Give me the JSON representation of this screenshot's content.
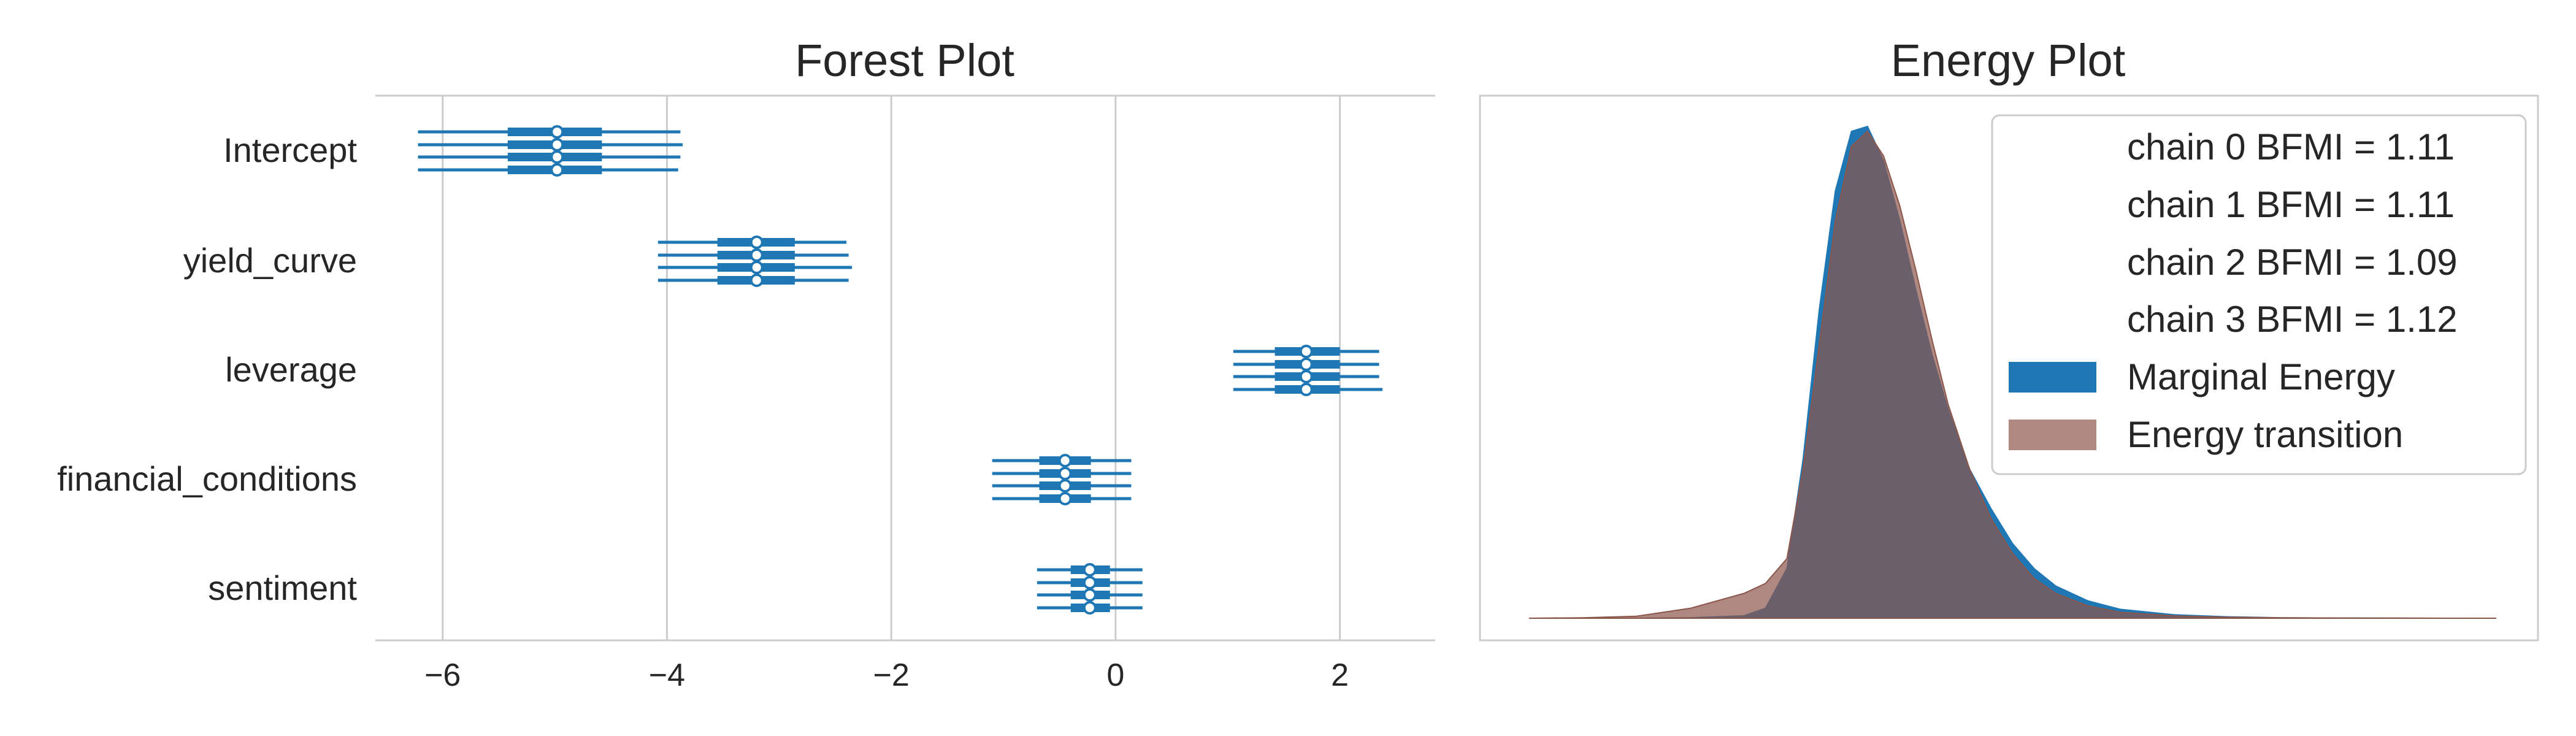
{
  "chart_data": [
    {
      "type": "forest",
      "title": "Forest Plot",
      "xlim": [
        -6.6,
        2.85
      ],
      "xticks": [
        -6,
        -4,
        -2,
        0,
        2
      ],
      "xtick_labels": [
        "−6",
        "−4",
        "−2",
        "0",
        "2"
      ],
      "grid": "vertical",
      "color": "#1f77b4",
      "parameters": [
        {
          "name": "Intercept",
          "chains": [
            {
              "median": -4.98,
              "hdi_50": [
                -5.42,
                -4.58
              ],
              "hdi_94": [
                -6.22,
                -3.88
              ]
            },
            {
              "median": -4.98,
              "hdi_50": [
                -5.42,
                -4.58
              ],
              "hdi_94": [
                -6.22,
                -3.86
              ]
            },
            {
              "median": -4.98,
              "hdi_50": [
                -5.42,
                -4.58
              ],
              "hdi_94": [
                -6.22,
                -3.88
              ]
            },
            {
              "median": -4.98,
              "hdi_50": [
                -5.42,
                -4.58
              ],
              "hdi_94": [
                -6.22,
                -3.9
              ]
            }
          ]
        },
        {
          "name": "yield_curve",
          "chains": [
            {
              "median": -3.2,
              "hdi_50": [
                -3.55,
                -2.86
              ],
              "hdi_94": [
                -4.08,
                -2.4
              ]
            },
            {
              "median": -3.2,
              "hdi_50": [
                -3.55,
                -2.86
              ],
              "hdi_94": [
                -4.08,
                -2.38
              ]
            },
            {
              "median": -3.2,
              "hdi_50": [
                -3.55,
                -2.86
              ],
              "hdi_94": [
                -4.08,
                -2.35
              ]
            },
            {
              "median": -3.2,
              "hdi_50": [
                -3.55,
                -2.86
              ],
              "hdi_94": [
                -4.08,
                -2.38
              ]
            }
          ]
        },
        {
          "name": "leverage",
          "chains": [
            {
              "median": 1.7,
              "hdi_50": [
                1.42,
                2.0
              ],
              "hdi_94": [
                1.05,
                2.35
              ]
            },
            {
              "median": 1.7,
              "hdi_50": [
                1.42,
                2.0
              ],
              "hdi_94": [
                1.05,
                2.35
              ]
            },
            {
              "median": 1.7,
              "hdi_50": [
                1.42,
                2.0
              ],
              "hdi_94": [
                1.05,
                2.35
              ]
            },
            {
              "median": 1.7,
              "hdi_50": [
                1.42,
                2.0
              ],
              "hdi_94": [
                1.05,
                2.38
              ]
            }
          ]
        },
        {
          "name": "financial_conditions",
          "chains": [
            {
              "median": -0.45,
              "hdi_50": [
                -0.68,
                -0.22
              ],
              "hdi_94": [
                -1.1,
                0.14
              ]
            },
            {
              "median": -0.45,
              "hdi_50": [
                -0.68,
                -0.22
              ],
              "hdi_94": [
                -1.1,
                0.14
              ]
            },
            {
              "median": -0.45,
              "hdi_50": [
                -0.68,
                -0.22
              ],
              "hdi_94": [
                -1.1,
                0.14
              ]
            },
            {
              "median": -0.45,
              "hdi_50": [
                -0.68,
                -0.22
              ],
              "hdi_94": [
                -1.1,
                0.14
              ]
            }
          ]
        },
        {
          "name": "sentiment",
          "chains": [
            {
              "median": -0.23,
              "hdi_50": [
                -0.4,
                -0.05
              ],
              "hdi_94": [
                -0.7,
                0.24
              ]
            },
            {
              "median": -0.23,
              "hdi_50": [
                -0.4,
                -0.05
              ],
              "hdi_94": [
                -0.7,
                0.24
              ]
            },
            {
              "median": -0.23,
              "hdi_50": [
                -0.4,
                -0.05
              ],
              "hdi_94": [
                -0.7,
                0.24
              ]
            },
            {
              "median": -0.23,
              "hdi_50": [
                -0.4,
                -0.05
              ],
              "hdi_94": [
                -0.7,
                0.24
              ]
            }
          ]
        }
      ]
    },
    {
      "type": "area",
      "title": "Energy Plot",
      "axes_hidden": true,
      "xlim": [
        -3.0,
        6.0
      ],
      "legend_position": "top-right",
      "legend_entries": [
        "chain  0 BFMI = 1.11",
        "chain  1 BFMI = 1.11",
        "chain  2 BFMI = 1.09",
        "chain  3 BFMI = 1.12",
        "Marginal Energy",
        "Energy transition"
      ],
      "series": [
        {
          "name": "Marginal Energy",
          "color": "#1f77b4",
          "opacity": 1.0,
          "x": [
            -2.6,
            -2.0,
            -1.5,
            -1.0,
            -0.8,
            -0.6,
            -0.45,
            -0.3,
            -0.15,
            0.0,
            0.15,
            0.3,
            0.45,
            0.6,
            0.75,
            0.9,
            1.1,
            1.3,
            1.5,
            1.7,
            1.9,
            2.2,
            2.5,
            3.0,
            3.5,
            4.0,
            4.5,
            5.0,
            5.5,
            6.0
          ],
          "y": [
            0.0,
            0.0,
            0.001,
            0.005,
            0.02,
            0.1,
            0.32,
            0.62,
            0.86,
            0.98,
            0.99,
            0.92,
            0.8,
            0.66,
            0.53,
            0.42,
            0.3,
            0.22,
            0.15,
            0.1,
            0.065,
            0.035,
            0.018,
            0.007,
            0.003,
            0.001,
            0.0005,
            0.0002,
            0.0,
            0.0
          ]
        },
        {
          "name": "Energy transition",
          "color": "#8c564b",
          "opacity": 0.7,
          "x": [
            -3.0,
            -2.5,
            -2.0,
            -1.5,
            -1.0,
            -0.8,
            -0.6,
            -0.45,
            -0.3,
            -0.15,
            0.0,
            0.15,
            0.3,
            0.45,
            0.6,
            0.75,
            0.9,
            1.1,
            1.3,
            1.5,
            1.7,
            1.9,
            2.2,
            2.5,
            3.0,
            3.5,
            4.0,
            4.5,
            5.0,
            6.0
          ],
          "y": [
            0.0,
            0.001,
            0.004,
            0.02,
            0.05,
            0.07,
            0.12,
            0.3,
            0.55,
            0.8,
            0.95,
            0.98,
            0.93,
            0.83,
            0.7,
            0.56,
            0.43,
            0.3,
            0.2,
            0.13,
            0.08,
            0.05,
            0.025,
            0.012,
            0.005,
            0.002,
            0.001,
            0.0005,
            0.0002,
            0.0
          ]
        }
      ]
    }
  ]
}
